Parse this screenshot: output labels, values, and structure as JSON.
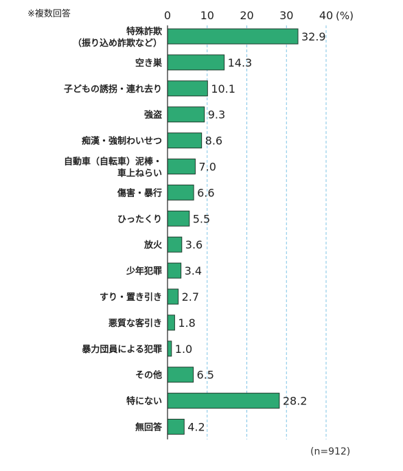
{
  "note": "※複数回答",
  "sample": "(n=912)",
  "colors": {
    "bar": "#2eaa74",
    "bar_stroke": "#1f3b2c",
    "grid": "#7fc3e6",
    "axis": "#222222"
  },
  "chart_data": {
    "type": "bar",
    "orientation": "horizontal",
    "x_axis_unit": "(%)",
    "xlim": [
      0,
      40
    ],
    "ticks": [
      0,
      10,
      20,
      30,
      40
    ],
    "grid": true,
    "categories": [
      [
        "特殊詐欺",
        "（振り込め詐欺など）"
      ],
      [
        "空き巣"
      ],
      [
        "子どもの誘拐・連れ去り"
      ],
      [
        "強盗"
      ],
      [
        "痴漢・強制わいせつ"
      ],
      [
        "自動車（自転車）泥棒・",
        "車上ねらい"
      ],
      [
        "傷害・暴行"
      ],
      [
        "ひったくり"
      ],
      [
        "放火"
      ],
      [
        "少年犯罪"
      ],
      [
        "すり・置き引き"
      ],
      [
        "悪質な客引き"
      ],
      [
        "暴力団員による犯罪"
      ],
      [
        "その他"
      ],
      [
        "特にない"
      ],
      [
        "無回答"
      ]
    ],
    "values": [
      "32.9",
      "14.3",
      "10.1",
      "9.3",
      "8.6",
      "7.0",
      "6.6",
      "5.5",
      "3.6",
      "3.4",
      "2.7",
      "1.8",
      "1.0",
      "6.5",
      "28.2",
      "4.2"
    ]
  }
}
